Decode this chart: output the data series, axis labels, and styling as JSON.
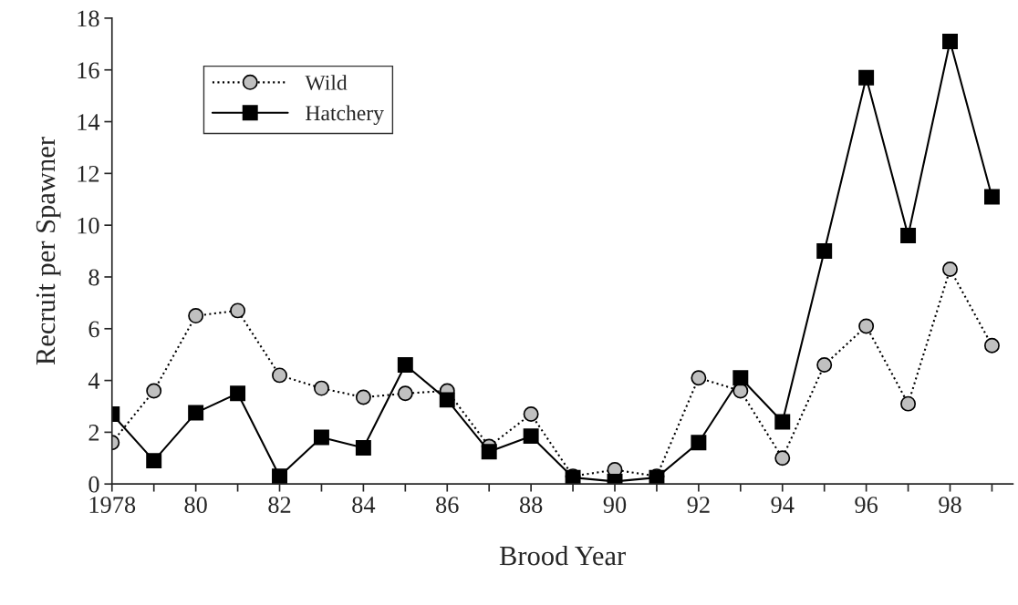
{
  "chart_data": {
    "type": "line",
    "xlabel": "Brood Year",
    "ylabel": "Recruit per Spawner",
    "x": [
      1978,
      1979,
      1980,
      1981,
      1982,
      1983,
      1984,
      1985,
      1986,
      1987,
      1988,
      1989,
      1990,
      1991,
      1992,
      1993,
      1994,
      1995,
      1996,
      1997,
      1998,
      1999
    ],
    "series": [
      {
        "name": "Wild",
        "color": "#c0c0c0",
        "marker": "circle",
        "line_style": "dotted",
        "values": [
          1.6,
          3.6,
          6.5,
          6.7,
          4.2,
          3.7,
          3.35,
          3.5,
          3.6,
          1.45,
          2.7,
          0.3,
          0.55,
          0.3,
          4.1,
          3.6,
          1.0,
          4.6,
          6.1,
          3.1,
          8.3,
          5.35
        ]
      },
      {
        "name": "Hatchery",
        "color": "#000000",
        "marker": "square",
        "line_style": "solid",
        "values": [
          2.7,
          0.9,
          2.75,
          3.5,
          0.3,
          1.8,
          1.4,
          4.6,
          3.25,
          1.25,
          1.85,
          0.25,
          0.1,
          0.25,
          1.6,
          4.1,
          2.4,
          9.0,
          15.7,
          9.6,
          17.1,
          11.1
        ]
      }
    ],
    "xlim": [
      1978,
      1999.5
    ],
    "xticks": [
      1978,
      {
        "value": 1979,
        "label": null
      },
      {
        "value": 1980,
        "label": "80"
      },
      {
        "value": 1981,
        "label": null
      },
      {
        "value": 1982,
        "label": "82"
      },
      {
        "value": 1983,
        "label": null
      },
      {
        "value": 1984,
        "label": "84"
      },
      {
        "value": 1985,
        "label": null
      },
      {
        "value": 1986,
        "label": "86"
      },
      {
        "value": 1987,
        "label": null
      },
      {
        "value": 1988,
        "label": "88"
      },
      {
        "value": 1989,
        "label": null
      },
      {
        "value": 1990,
        "label": "90"
      },
      {
        "value": 1991,
        "label": null
      },
      {
        "value": 1992,
        "label": "92"
      },
      {
        "value": 1993,
        "label": null
      },
      {
        "value": 1994,
        "label": "94"
      },
      {
        "value": 1995,
        "label": null
      },
      {
        "value": 1996,
        "label": "96"
      },
      {
        "value": 1997,
        "label": null
      },
      {
        "value": 1998,
        "label": "98"
      },
      {
        "value": 1999,
        "label": null
      }
    ],
    "ylim": [
      0,
      18
    ],
    "yticks": [
      0,
      2,
      4,
      6,
      8,
      10,
      12,
      14,
      16,
      18
    ],
    "grid": false,
    "legend": "top left"
  }
}
